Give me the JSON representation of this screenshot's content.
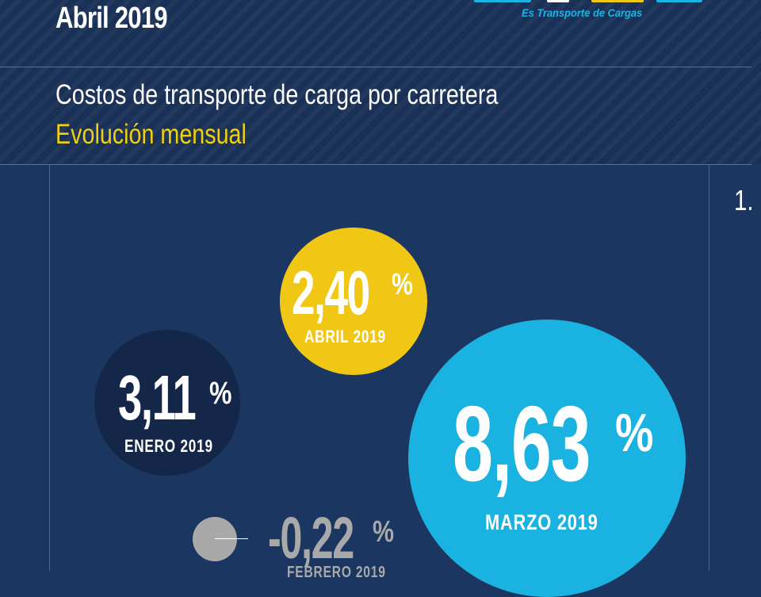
{
  "header": {
    "date_title": "Abril 2019",
    "brand_tagline": "Es Transporte de Cargas",
    "report_title": "Costos de transporte de carga por carretera",
    "report_subtitle": "Evolución mensual"
  },
  "side_panel": {
    "number": "1."
  },
  "bubbles": [
    {
      "value": "2,40",
      "unit": "%",
      "month": "ABRIL 2019",
      "color": "#f1c716"
    },
    {
      "value": "3,11",
      "unit": "%",
      "month": "ENERO 2019",
      "color": "#142748"
    },
    {
      "value": "8,63",
      "unit": "%",
      "month": "MARZO 2019",
      "color": "#1ab2e0"
    },
    {
      "value": "-0,22",
      "unit": "%",
      "month": "FEBRERO 2019",
      "color": "#a9a9a9"
    }
  ],
  "colors": {
    "background": "#1b3660",
    "accent_yellow": "#f1d00f",
    "accent_blue": "#18b4e4"
  }
}
